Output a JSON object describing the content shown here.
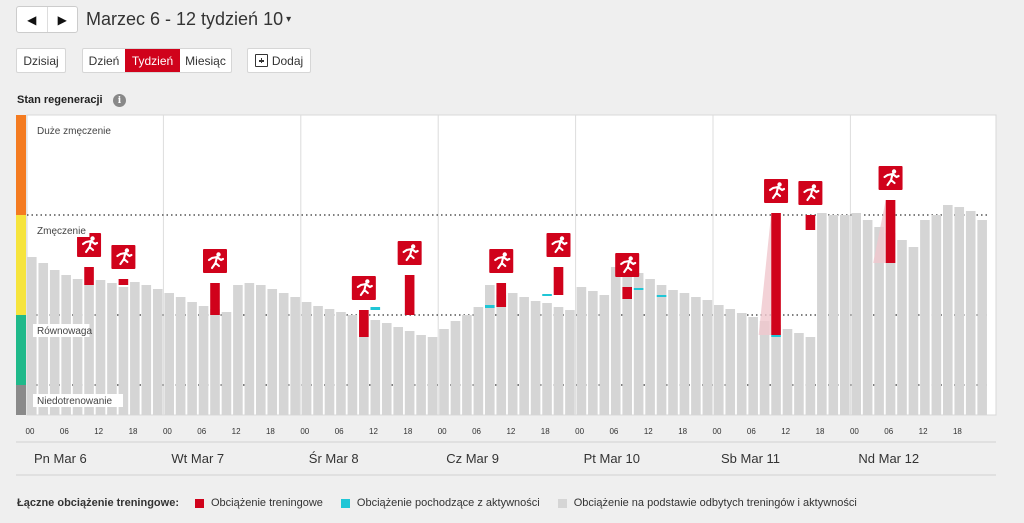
{
  "nav": {
    "prev_icon": "triangle-left-icon",
    "next_icon": "triangle-right-icon"
  },
  "period": {
    "title": "Marzec 6 - 12 tydzień 10",
    "caret": "▾"
  },
  "toolbar": {
    "today_label": "Dzisiaj",
    "day_label": "Dzień",
    "week_label": "Tydzień",
    "month_label": "Miesiąc",
    "add_label": "Dodaj",
    "active_view": "week"
  },
  "section": {
    "title": "Stan regeneracji",
    "info_icon": "i"
  },
  "colors": {
    "training": "#d0021b",
    "activity": "#1fc6d6",
    "base": "#d5d5d5",
    "zone_high": "#f47b20",
    "zone_strain": "#f6e43d",
    "zone_balance": "#1fb98a",
    "zone_low": "#8a8a8a"
  },
  "chart_data": {
    "type": "bar",
    "title": "Stan regeneracji",
    "zones": [
      "Duże zmęczenie",
      "Zmęczenie",
      "Równowaga",
      "Niedotrenowanie"
    ],
    "ylim": [
      0,
      3
    ],
    "hour_ticks": [
      "00",
      "06",
      "12",
      "18"
    ],
    "days": [
      "Pn Mar 6",
      "Wt Mar 7",
      "Śr Mar 8",
      "Cz Mar 9",
      "Pt Mar 10",
      "Sb Mar 11",
      "Nd Mar 12"
    ],
    "bars_per_day": 12,
    "base": [
      1.58,
      1.52,
      1.45,
      1.4,
      1.36,
      1.3,
      1.35,
      1.32,
      1.28,
      1.33,
      1.3,
      1.26,
      1.22,
      1.18,
      1.13,
      1.09,
      1.06,
      1.03,
      1.3,
      1.32,
      1.3,
      1.26,
      1.22,
      1.18,
      1.13,
      1.09,
      1.06,
      1.03,
      1.0,
      0.98,
      0.95,
      0.92,
      0.88,
      0.84,
      0.8,
      0.78,
      0.86,
      0.94,
      1.0,
      1.08,
      1.3,
      1.26,
      1.22,
      1.18,
      1.14,
      1.12,
      1.08,
      1.05,
      1.28,
      1.24,
      1.2,
      1.48,
      1.46,
      1.42,
      1.36,
      1.3,
      1.25,
      1.22,
      1.18,
      1.15,
      1.1,
      1.06,
      1.02,
      0.98,
      0.94,
      0.9,
      0.86,
      0.82,
      0.78,
      2.02,
      2.0,
      2.0,
      2.02,
      1.95,
      1.88,
      1.82,
      1.75,
      1.68,
      1.95,
      2.0,
      2.1,
      2.08,
      2.04,
      1.95
    ],
    "training": [
      {
        "bar": 5,
        "from": 1.3,
        "to": 1.48,
        "run": true
      },
      {
        "bar": 8,
        "from": 1.3,
        "to": 1.36,
        "run": true
      },
      {
        "bar": 16,
        "from": 1.0,
        "to": 1.32,
        "run": true
      },
      {
        "bar": 29,
        "from": 0.78,
        "to": 1.05,
        "run": true
      },
      {
        "bar": 33,
        "from": 1.0,
        "to": 1.4,
        "run": true
      },
      {
        "bar": 41,
        "from": 1.08,
        "to": 1.32,
        "run": true
      },
      {
        "bar": 46,
        "from": 1.2,
        "to": 1.48,
        "run": true
      },
      {
        "bar": 52,
        "from": 1.16,
        "to": 1.28,
        "run": true
      },
      {
        "bar": 65,
        "from": 0.8,
        "to": 2.02,
        "run": true
      },
      {
        "bar": 68,
        "from": 1.85,
        "to": 2.0,
        "run": true
      },
      {
        "bar": 75,
        "from": 1.52,
        "to": 2.15,
        "run": true
      }
    ],
    "activity": [
      {
        "bar": 30,
        "from": 1.05,
        "to": 1.08
      },
      {
        "bar": 33,
        "from": 1.0,
        "to": 1.02
      },
      {
        "bar": 40,
        "from": 1.07,
        "to": 1.1
      },
      {
        "bar": 41,
        "from": 1.08,
        "to": 1.2
      },
      {
        "bar": 45,
        "from": 1.19,
        "to": 1.21
      },
      {
        "bar": 53,
        "from": 1.25,
        "to": 1.27
      },
      {
        "bar": 55,
        "from": 1.18,
        "to": 1.2
      },
      {
        "bar": 65,
        "from": 0.78,
        "to": 0.8
      }
    ]
  },
  "legend": {
    "title": "Łączne obciążenie treningowe:",
    "items": [
      {
        "label": "Obciążenie treningowe",
        "color": "#d0021b"
      },
      {
        "label": "Obciążenie pochodzące z aktywności",
        "color": "#1fc6d6"
      },
      {
        "label": "Obciążenie na podstawie odbytych treningów i aktywności",
        "color": "#d5d5d5"
      }
    ]
  }
}
